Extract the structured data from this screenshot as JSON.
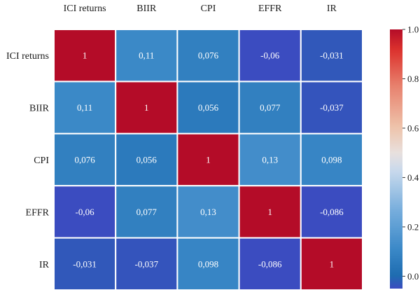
{
  "chart_data": {
    "type": "heatmap",
    "title": "",
    "xlabel": "",
    "ylabel": "",
    "x_labels": [
      "ICI returns",
      "BIIR",
      "CPI",
      "EFFR",
      "IR"
    ],
    "y_labels": [
      "ICI returns",
      "BIIR",
      "CPI",
      "EFFR",
      "IR"
    ],
    "matrix": [
      [
        1,
        0.11,
        0.076,
        -0.06,
        -0.031
      ],
      [
        0.11,
        1,
        0.056,
        0.077,
        -0.037
      ],
      [
        0.076,
        0.056,
        1,
        0.13,
        0.098
      ],
      [
        -0.06,
        0.077,
        0.13,
        1,
        -0.086
      ],
      [
        -0.031,
        -0.037,
        0.098,
        -0.086,
        1
      ]
    ],
    "cell_labels": [
      [
        "1",
        "0,11",
        "0,076",
        "-0,06",
        "-0,031"
      ],
      [
        "0,11",
        "1",
        "0,056",
        "0,077",
        "-0,037"
      ],
      [
        "0,076",
        "0,056",
        "1",
        "0,13",
        "0,098"
      ],
      [
        "-0,06",
        "0,077",
        "0,13",
        "1",
        "-0,086"
      ],
      [
        "-0,031",
        "-0,037",
        "0,098",
        "-0,086",
        "1"
      ]
    ],
    "colorbar": {
      "range": [
        -0.05,
        1.0
      ],
      "ticks": [
        0.0,
        0.2,
        0.4,
        0.6,
        0.8,
        1.0
      ],
      "tick_labels": [
        "0.0",
        "0.2",
        "0.4",
        "0.6",
        "0.8",
        "1.0"
      ],
      "colormap": "coolwarm (blue to red)"
    },
    "x_axis_position": "top",
    "legend": "colorbar right",
    "grid": false
  }
}
